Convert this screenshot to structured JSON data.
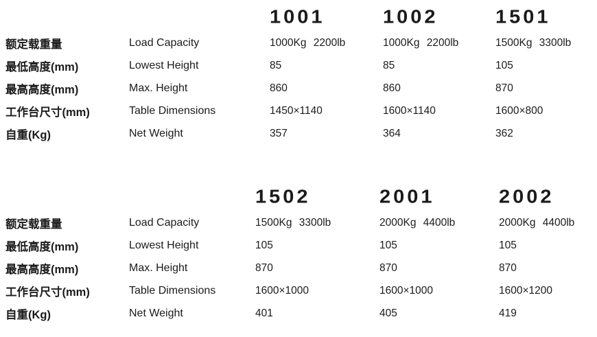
{
  "colors": {
    "text": "#1b1b1b",
    "background": "#ffffff"
  },
  "sections": [
    {
      "models": [
        "1001",
        "1002",
        "1501"
      ],
      "rows": [
        {
          "cn": "额定载重量",
          "en": "Load Capacity",
          "values": [
            "1000Kg 2200lb",
            "1000Kg 2200lb",
            "1500Kg 3300lb"
          ]
        },
        {
          "cn": "最低高度(mm)",
          "en": "Lowest Height",
          "values": [
            "85",
            "85",
            "105"
          ]
        },
        {
          "cn": "最高高度(mm)",
          "en": "Max. Height",
          "values": [
            "860",
            "860",
            "870"
          ]
        },
        {
          "cn": "工作台尺寸(mm)",
          "en": "Table Dimensions",
          "values": [
            "1450×1140",
            "1600×1140",
            "1600×800"
          ]
        },
        {
          "cn": "自重(Kg)",
          "en": "Net Weight",
          "values": [
            "357",
            "364",
            "362"
          ]
        }
      ]
    },
    {
      "models": [
        "1502",
        "2001",
        "2002"
      ],
      "rows": [
        {
          "cn": "额定载重量",
          "en": "Load Capacity",
          "values": [
            "1500Kg 3300lb",
            "2000Kg 4400lb",
            "2000Kg 4400lb"
          ]
        },
        {
          "cn": "最低高度(mm)",
          "en": "Lowest Height",
          "values": [
            "105",
            "105",
            "105"
          ]
        },
        {
          "cn": "最高高度(mm)",
          "en": "Max. Height",
          "values": [
            "870",
            "870",
            "870"
          ]
        },
        {
          "cn": "工作台尺寸(mm)",
          "en": "Table Dimensions",
          "values": [
            "1600×1000",
            "1600×1000",
            "1600×1200"
          ]
        },
        {
          "cn": "自重(Kg)",
          "en": "Net Weight",
          "values": [
            "401",
            "405",
            "419"
          ]
        }
      ]
    }
  ]
}
